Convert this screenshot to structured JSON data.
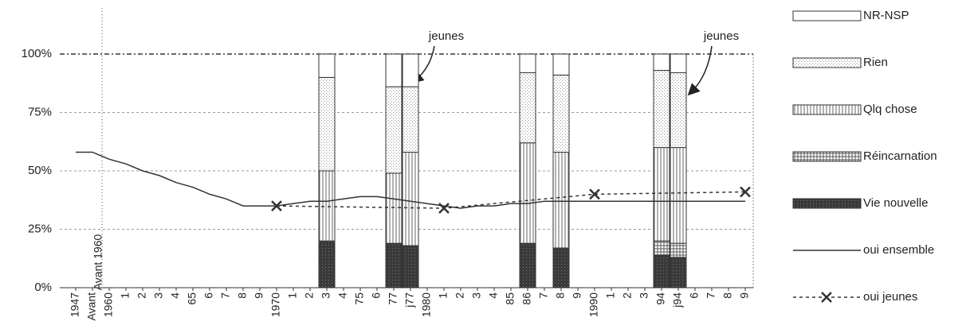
{
  "chart_data": {
    "type": "bar",
    "stacked": true,
    "span_gaps": true,
    "grid": true,
    "legend": "right",
    "categories": [
      "1947",
      "Avant",
      "1960",
      "1",
      "2",
      "3",
      "4",
      "65",
      "6",
      "7",
      "8",
      "9",
      "1970",
      "1",
      "2",
      "3",
      "4",
      "75",
      "6",
      "77",
      "j77",
      "1980",
      "1",
      "2",
      "3",
      "4",
      "85",
      "86",
      "7",
      "8",
      "9",
      "1990",
      "1",
      "2",
      "3",
      "94",
      "j94",
      "6",
      "7",
      "8",
      "9"
    ],
    "ylim": [
      0,
      100
    ],
    "yticks": [
      {
        "value": 0,
        "label": "0%"
      },
      {
        "value": 25,
        "label": "25%"
      },
      {
        "value": 50,
        "label": "50%"
      },
      {
        "value": 75,
        "label": "75%"
      },
      {
        "value": 100,
        "label": "100%"
      }
    ],
    "annotations": [
      "jeunes",
      "jeunes",
      "Avant 1960"
    ],
    "series": [
      {
        "name": "Vie nouvelle",
        "type": "bar",
        "color": "#3a3a3a",
        "values": [
          null,
          null,
          null,
          null,
          null,
          null,
          null,
          null,
          null,
          null,
          null,
          null,
          null,
          null,
          null,
          20,
          null,
          null,
          null,
          19,
          18,
          null,
          null,
          null,
          null,
          null,
          null,
          19,
          null,
          17,
          null,
          null,
          null,
          null,
          null,
          14,
          13,
          null,
          null,
          null,
          null
        ]
      },
      {
        "name": "Réincarnation",
        "type": "bar",
        "color": "#555555",
        "values": [
          null,
          null,
          null,
          null,
          null,
          null,
          null,
          null,
          null,
          null,
          null,
          null,
          null,
          null,
          null,
          0,
          null,
          null,
          null,
          0,
          0,
          null,
          null,
          null,
          null,
          null,
          null,
          0,
          null,
          0,
          null,
          null,
          null,
          null,
          null,
          6,
          6,
          null,
          null,
          null,
          null
        ]
      },
      {
        "name": "Qlq chose",
        "type": "bar",
        "color": "#666666",
        "values": [
          null,
          null,
          null,
          null,
          null,
          null,
          null,
          null,
          null,
          null,
          null,
          null,
          null,
          null,
          null,
          30,
          null,
          null,
          null,
          30,
          40,
          null,
          null,
          null,
          null,
          null,
          null,
          43,
          null,
          41,
          null,
          null,
          null,
          null,
          null,
          40,
          41,
          null,
          null,
          null,
          null
        ]
      },
      {
        "name": "Rien",
        "type": "bar",
        "color": "#999999",
        "values": [
          null,
          null,
          null,
          null,
          null,
          null,
          null,
          null,
          null,
          null,
          null,
          null,
          null,
          null,
          null,
          40,
          null,
          null,
          null,
          37,
          28,
          null,
          null,
          null,
          null,
          null,
          null,
          30,
          null,
          33,
          null,
          null,
          null,
          null,
          null,
          33,
          32,
          null,
          null,
          null,
          null
        ]
      },
      {
        "name": "NR-NSP",
        "type": "bar",
        "color": "#ffffff",
        "values": [
          null,
          null,
          null,
          null,
          null,
          null,
          null,
          null,
          null,
          null,
          null,
          null,
          null,
          null,
          null,
          10,
          null,
          null,
          null,
          14,
          14,
          null,
          null,
          null,
          null,
          null,
          null,
          8,
          null,
          9,
          null,
          null,
          null,
          null,
          null,
          7,
          8,
          null,
          null,
          null,
          null
        ]
      },
      {
        "name": "oui ensemble",
        "type": "line",
        "color": "#333333",
        "values": [
          58,
          58,
          55,
          53,
          50,
          48,
          45,
          43,
          40,
          38,
          35,
          35,
          35,
          36,
          37,
          37,
          38,
          39,
          39,
          38,
          37,
          36,
          35,
          34,
          35,
          35,
          36,
          36,
          37,
          37,
          37,
          37,
          37,
          37,
          37,
          37,
          37,
          37,
          37,
          37,
          37
        ]
      },
      {
        "name": "oui jeunes",
        "type": "line",
        "dashed": true,
        "marker": "x",
        "color": "#333333",
        "values": [
          null,
          null,
          null,
          null,
          null,
          null,
          null,
          null,
          null,
          null,
          null,
          null,
          35,
          null,
          null,
          null,
          null,
          null,
          null,
          null,
          null,
          null,
          34,
          null,
          null,
          null,
          null,
          null,
          null,
          null,
          null,
          40,
          null,
          null,
          null,
          null,
          null,
          null,
          null,
          null,
          41
        ]
      }
    ]
  }
}
